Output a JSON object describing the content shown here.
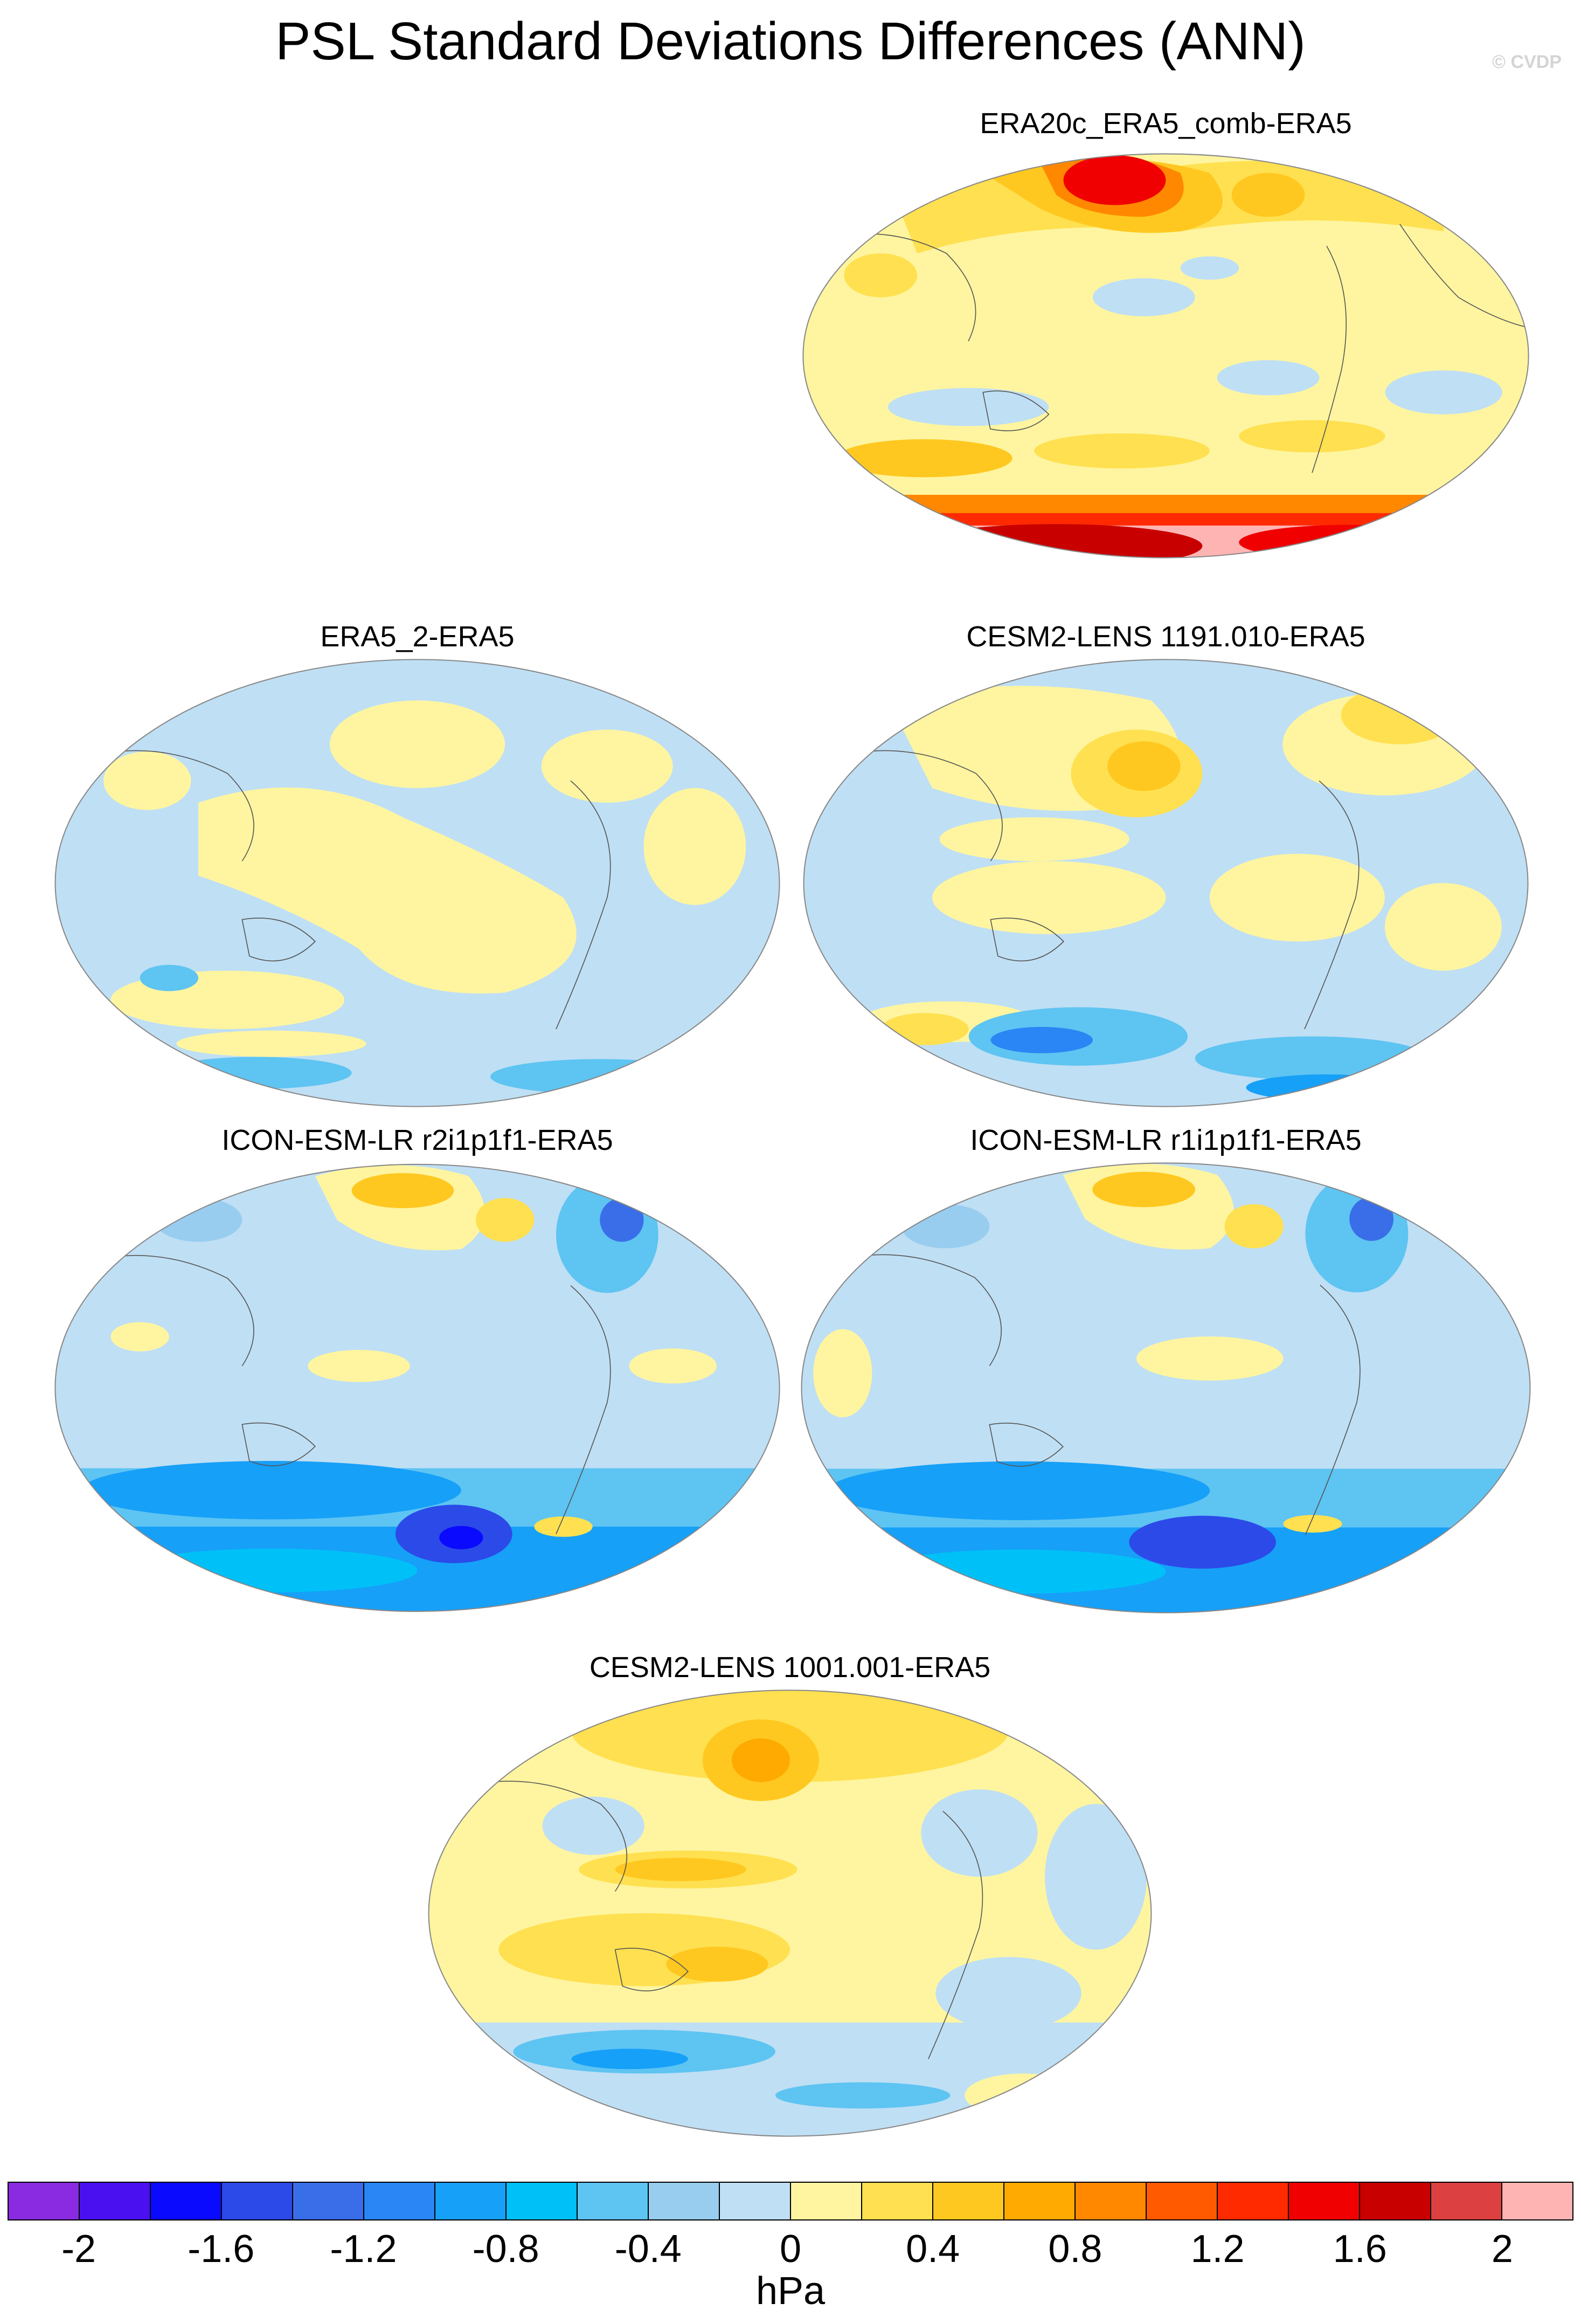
{
  "title": "PSL Standard Deviations Differences (ANN)",
  "watermark": "© CVDP",
  "panels": [
    {
      "id": "era20c",
      "title": "ERA20c_ERA5_comb-ERA5"
    },
    {
      "id": "era5-2",
      "title": "ERA5_2-ERA5"
    },
    {
      "id": "cesm2-1191",
      "title": "CESM2-LENS 1191.010-ERA5"
    },
    {
      "id": "icon-r2",
      "title": "ICON-ESM-LR r2i1p1f1-ERA5"
    },
    {
      "id": "icon-r1",
      "title": "ICON-ESM-LR r1i1p1f1-ERA5"
    },
    {
      "id": "cesm2-1001",
      "title": "CESM2-LENS 1001.001-ERA5"
    }
  ],
  "colorbar": {
    "units": "hPa",
    "tick_labels": [
      "-2",
      "-1.6",
      "-1.2",
      "-0.8",
      "-0.4",
      "0",
      "0.4",
      "0.8",
      "1.2",
      "1.6",
      "2"
    ],
    "colors": [
      "#8a2be2",
      "#4a10f0",
      "#0a0aff",
      "#2c4ae8",
      "#3a6ee8",
      "#2a86f5",
      "#16a0f8",
      "#00c0f8",
      "#5ec4f2",
      "#98cdef",
      "#bfdff4",
      "#fff5a0",
      "#ffe050",
      "#ffc820",
      "#ffaa00",
      "#ff8800",
      "#ff5a00",
      "#ff2a00",
      "#f00000",
      "#c80000",
      "#dc4040",
      "#ffb4b4"
    ],
    "map_background_color": "#bfdff4",
    "positive_fill_color": "#fff5a0"
  }
}
